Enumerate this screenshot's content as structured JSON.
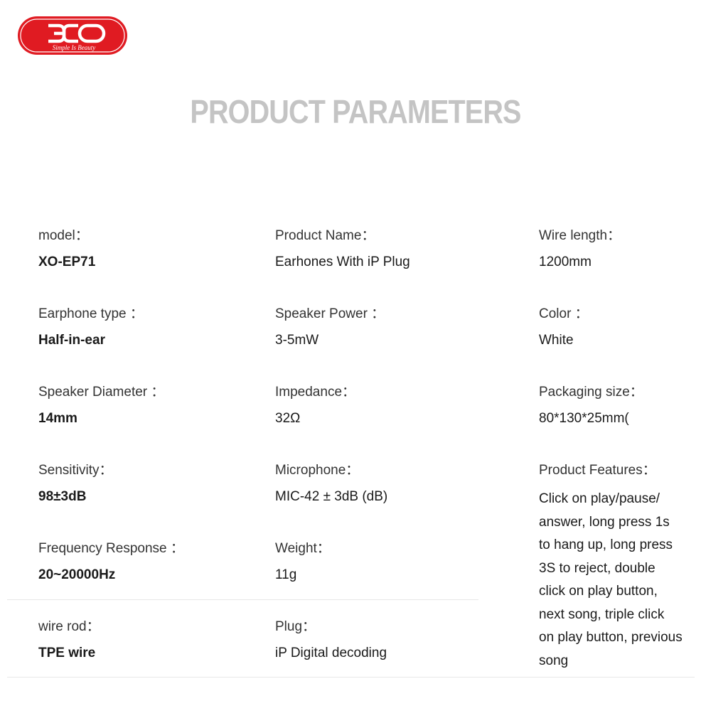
{
  "brand": {
    "name": "XO",
    "tagline": "Simple Is Beauty",
    "color": "#e01b22"
  },
  "title": "PRODUCT PARAMETERS",
  "columns": [
    [
      {
        "label": "model：",
        "value": "XO-EP71"
      },
      {
        "label": "Earphone type ：",
        "value": "Half-in-ear"
      },
      {
        "label": "Speaker Diameter ：",
        "value": "14mm"
      },
      {
        "label": "Sensitivity：",
        "value": "98±3dB"
      },
      {
        "label": "Frequency Response ：",
        "value": "20~20000Hz"
      },
      {
        "label": "wire rod：",
        "value": "TPE wire"
      }
    ],
    [
      {
        "label": "Product Name：",
        "value": "Earhones With iP Plug"
      },
      {
        "label": "Speaker Power ：",
        "value": "3-5mW"
      },
      {
        "label": "Impedance：",
        "value": "32Ω"
      },
      {
        "label": "Microphone：",
        "value": "MIC-42 ± 3dB (dB)"
      },
      {
        "label": "Weight：",
        "value": "11g"
      },
      {
        "label": "Plug：",
        "value": "iP Digital decoding"
      }
    ],
    [
      {
        "label": "Wire length：",
        "value": "1200mm"
      },
      {
        "label": "Color ：",
        "value": "White"
      },
      {
        "label": "Packaging size：",
        "value": "80*130*25mm("
      },
      {
        "label": "Product Features：",
        "value": "Click on play/pause/\nanswer, long press 1s\nto hang up, long press\n3S to reject, double\nclick on play button,\nnext song, triple click\non play button, previous\n song"
      }
    ]
  ]
}
